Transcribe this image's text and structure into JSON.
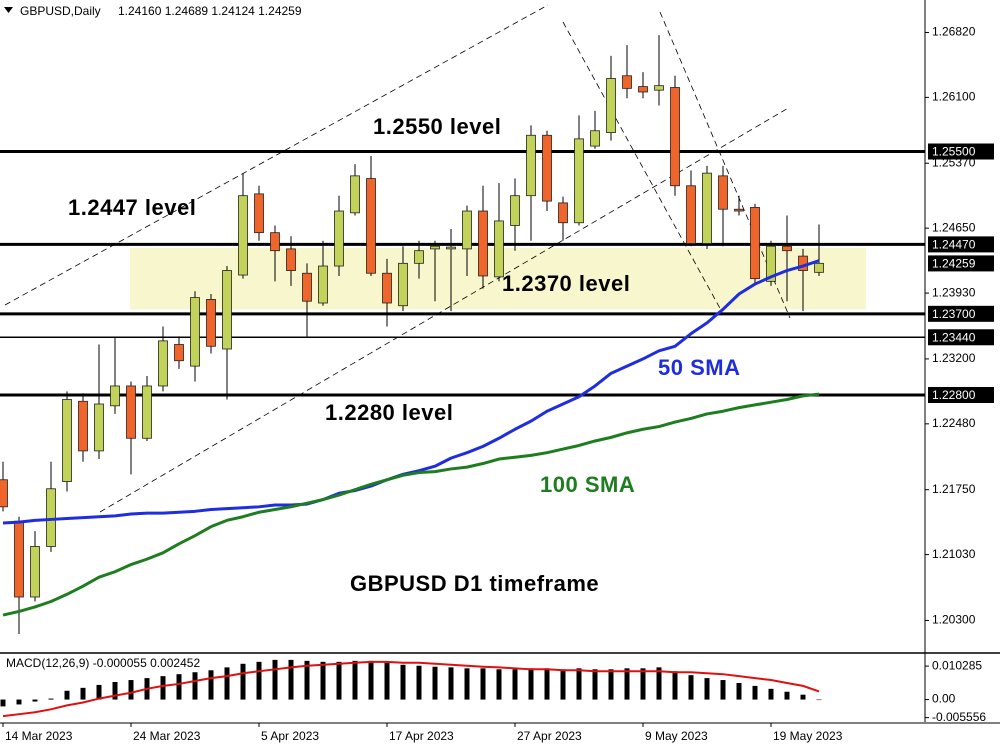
{
  "chart_data": [
    {
      "type": "candlestick",
      "title": "GBPUSD,Daily",
      "subtitle": "1.24160 1.24689 1.24124 1.24259",
      "annotations": [
        "1.2550 level",
        "1.2447 level",
        "1.2370 level",
        "1.2280 level",
        "GBPUSD D1 timeframe"
      ],
      "categories": [
        "14 Mar 2023",
        null,
        null,
        null,
        null,
        null,
        null,
        null,
        "24 Mar 2023",
        null,
        null,
        null,
        null,
        null,
        null,
        null,
        "5 Apr 2023",
        null,
        null,
        null,
        null,
        null,
        null,
        null,
        "17 Apr 2023",
        null,
        null,
        null,
        null,
        null,
        null,
        null,
        "27 Apr 2023",
        null,
        null,
        null,
        null,
        null,
        null,
        null,
        "9 May 2023",
        null,
        null,
        null,
        null,
        null,
        null,
        null,
        "19 May 2023",
        null,
        null,
        null
      ],
      "open": [
        1.2186,
        1.214,
        1.2056,
        1.2112,
        1.2184,
        1.2273,
        1.2218,
        1.2268,
        1.229,
        1.2232,
        1.229,
        1.2336,
        1.2312,
        1.2386,
        1.2331,
        1.2413,
        1.2503,
        1.246,
        1.2442,
        1.2415,
        1.2382,
        1.2423,
        1.2482,
        1.252,
        1.2415,
        1.2379,
        1.2426,
        1.2442,
        1.2442,
        1.2442,
        1.2484,
        1.2411,
        1.2468,
        1.2501,
        1.2568,
        1.2493,
        1.2471,
        1.2556,
        1.2571,
        1.2634,
        1.2622,
        1.2618,
        1.2621,
        1.2512,
        1.2448,
        1.2523,
        1.2486,
        1.2488,
        1.2406,
        1.2445,
        1.2434,
        1.2416
      ],
      "high": [
        1.2206,
        1.2145,
        1.2129,
        1.2206,
        1.2284,
        1.2282,
        1.2336,
        1.2343,
        1.2295,
        1.2301,
        1.2356,
        1.2345,
        1.2395,
        1.2392,
        1.2423,
        1.2526,
        1.2512,
        1.2468,
        1.2456,
        1.2426,
        1.2451,
        1.2501,
        1.2536,
        1.2545,
        1.2431,
        1.2445,
        1.2451,
        1.2451,
        1.2464,
        1.249,
        1.2512,
        1.2515,
        1.252,
        1.2579,
        1.2573,
        1.25,
        1.259,
        1.2595,
        1.2656,
        1.2668,
        1.2638,
        1.2679,
        1.2634,
        1.2529,
        1.2534,
        1.2534,
        1.2501,
        1.2492,
        1.2451,
        1.2479,
        1.2442,
        1.2469
      ],
      "low": [
        1.2151,
        1.2015,
        1.2051,
        1.2106,
        1.2173,
        1.2206,
        1.2209,
        1.2259,
        1.2192,
        1.2229,
        1.2284,
        1.2309,
        1.2295,
        1.2326,
        1.2275,
        1.2409,
        1.2451,
        1.2406,
        1.2401,
        1.2345,
        1.2379,
        1.2412,
        1.2479,
        1.2412,
        1.2356,
        1.2373,
        1.2409,
        1.2384,
        1.2373,
        1.2412,
        1.2398,
        1.2406,
        1.244,
        1.2451,
        1.2484,
        1.2451,
        1.2468,
        1.2553,
        1.2562,
        1.2609,
        1.2609,
        1.2601,
        1.2501,
        1.2445,
        1.2442,
        1.2445,
        1.2479,
        1.2404,
        1.2401,
        1.2384,
        1.2373,
        1.2412
      ],
      "close": [
        1.2156,
        1.2056,
        1.2112,
        1.2176,
        1.2275,
        1.2218,
        1.227,
        1.229,
        1.2232,
        1.229,
        1.234,
        1.2318,
        1.2388,
        1.2334,
        1.2418,
        1.2501,
        1.246,
        1.244,
        1.2418,
        1.2384,
        1.2423,
        1.2484,
        1.2523,
        1.2415,
        1.2382,
        1.2426,
        1.244,
        1.2445,
        1.2444,
        1.2484,
        1.2412,
        1.2473,
        1.2501,
        1.2568,
        1.2495,
        1.2471,
        1.2564,
        1.2573,
        1.2631,
        1.262,
        1.2616,
        1.2623,
        1.2512,
        1.2448,
        1.2526,
        1.2486,
        1.2484,
        1.2409,
        1.2445,
        1.244,
        1.2418,
        1.2426
      ],
      "up_color": "#c3d35a",
      "down_color": "#f0652a",
      "series": [
        {
          "name": "50 SMA",
          "color": "#1f2de0",
          "values": [
            1.2138,
            1.2139,
            1.2141,
            1.2142,
            1.2143,
            1.2144,
            1.2145,
            1.2146,
            1.2148,
            1.2149,
            1.2149,
            1.215,
            1.2151,
            1.2153,
            1.2154,
            1.2155,
            1.2156,
            1.2158,
            1.2158,
            1.2159,
            1.2164,
            1.2171,
            1.2174,
            1.2179,
            1.2186,
            1.2192,
            1.2196,
            1.2201,
            1.221,
            1.2216,
            1.2223,
            1.2232,
            1.2242,
            1.2251,
            1.2262,
            1.227,
            1.2278,
            1.229,
            1.2304,
            1.2312,
            1.232,
            1.2329,
            1.2334,
            1.2348,
            1.236,
            1.2375,
            1.2392,
            1.2403,
            1.2411,
            1.2418,
            1.2423,
            1.2429
          ]
        },
        {
          "name": "100 SMA",
          "color": "#1e7d1e",
          "values": [
            1.2036,
            1.204,
            1.2045,
            1.2051,
            1.2059,
            1.2068,
            1.2078,
            1.2084,
            1.2092,
            1.2098,
            1.2105,
            1.2115,
            1.2124,
            1.2134,
            1.2141,
            1.2145,
            1.215,
            1.2153,
            1.2156,
            1.216,
            1.2164,
            1.2169,
            1.2175,
            1.2181,
            1.2186,
            1.2191,
            1.2194,
            1.2195,
            1.2198,
            1.22,
            1.2204,
            1.2209,
            1.2211,
            1.2213,
            1.2216,
            1.222,
            1.2224,
            1.2229,
            1.2233,
            1.2238,
            1.2242,
            1.2245,
            1.225,
            1.2254,
            1.2259,
            1.2262,
            1.2266,
            1.2269,
            1.2272,
            1.2275,
            1.2279,
            1.2281
          ]
        }
      ],
      "zone": {
        "from": 1.2375,
        "to": 1.2443,
        "color": "#f8f6cc"
      },
      "levels": [
        {
          "value": 1.255,
          "label": "1.25500",
          "width": "thick"
        },
        {
          "value": 1.2447,
          "label": "1.24470",
          "width": "thick"
        },
        {
          "value": 1.237,
          "label": "1.23700",
          "width": "thick"
        },
        {
          "value": 1.2344,
          "label": "1.23440",
          "width": "thin"
        },
        {
          "value": 1.228,
          "label": "1.22800",
          "width": "thick"
        }
      ],
      "last_price": {
        "value": 1.24259,
        "label": "1.24259"
      },
      "ylim": [
        1.1995,
        1.2718
      ],
      "yticks": [
        {
          "value": 1.2682,
          "label": "1.26820"
        },
        {
          "value": 1.261,
          "label": "1.26100"
        },
        {
          "value": 1.2537,
          "label": "1.25370"
        },
        {
          "value": 1.2465,
          "label": "1.24650"
        },
        {
          "value": 1.2393,
          "label": "1.23930"
        },
        {
          "value": 1.232,
          "label": "1.23200"
        },
        {
          "value": 1.2248,
          "label": "1.22480"
        },
        {
          "value": 1.2175,
          "label": "1.21750"
        },
        {
          "value": 1.2103,
          "label": "1.21030"
        },
        {
          "value": 1.203,
          "label": "1.20300"
        }
      ],
      "grid": false
    },
    {
      "type": "macd",
      "title": "MACD(12,26,9) -0.000055 0.002452",
      "bar_color": "#000000",
      "values": [
        -0.0021,
        -0.0015,
        -0.0006,
        0.0003,
        0.0027,
        0.0036,
        0.0045,
        0.0054,
        0.006,
        0.0066,
        0.0072,
        0.0078,
        0.0084,
        0.009,
        0.0099,
        0.011,
        0.0116,
        0.0122,
        0.0122,
        0.0119,
        0.0116,
        0.0116,
        0.0119,
        0.0119,
        0.0113,
        0.0107,
        0.0104,
        0.0101,
        0.0099,
        0.0096,
        0.0096,
        0.0093,
        0.0093,
        0.0096,
        0.0096,
        0.0093,
        0.0096,
        0.0093,
        0.0093,
        0.0096,
        0.0096,
        0.0099,
        0.0087,
        0.0075,
        0.0066,
        0.006,
        0.0051,
        0.0042,
        0.0033,
        0.0024,
        0.0015,
        -5.5e-05
      ],
      "signal": {
        "color": "#e01010",
        "values": [
          -0.0051,
          -0.0045,
          -0.0039,
          -0.003,
          -0.0018,
          -0.0009,
          0.0003,
          0.0012,
          0.0021,
          0.0033,
          0.0042,
          0.0048,
          0.0057,
          0.0066,
          0.0072,
          0.0081,
          0.0087,
          0.0093,
          0.0099,
          0.0104,
          0.0107,
          0.011,
          0.0113,
          0.0116,
          0.0116,
          0.0113,
          0.0113,
          0.011,
          0.0107,
          0.0104,
          0.0101,
          0.0099,
          0.0096,
          0.0093,
          0.0093,
          0.009,
          0.009,
          0.0087,
          0.0087,
          0.0087,
          0.0087,
          0.0087,
          0.0084,
          0.0084,
          0.0081,
          0.0078,
          0.0072,
          0.0066,
          0.006,
          0.0051,
          0.0042,
          0.0025
        ]
      },
      "ylim": [
        -0.0069,
        0.0137
      ],
      "yticks": [
        0.010285,
        {
          "value": 0,
          "label": "0.00"
        },
        -0.005556
      ]
    }
  ]
}
